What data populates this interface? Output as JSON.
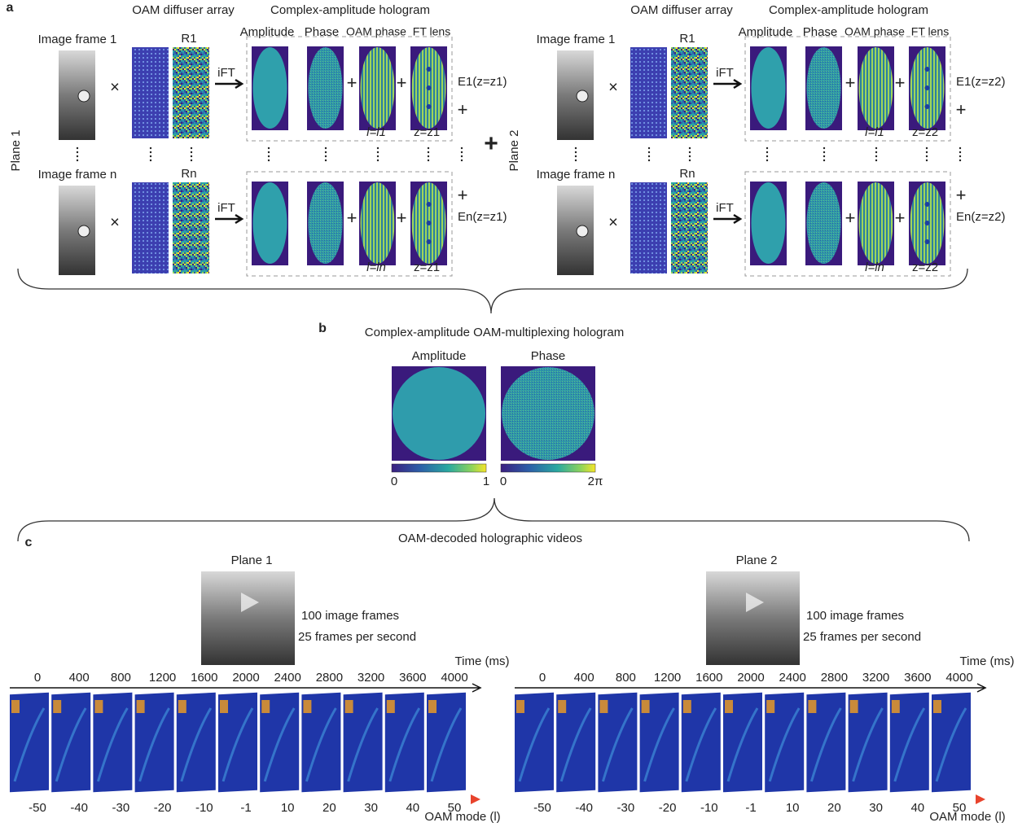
{
  "panel_a": {
    "label": "a",
    "plus": "+",
    "times": "×",
    "planes": [
      {
        "name": "Plane 1",
        "diffuser_title": "OAM diffuser array",
        "hologram_title": "Complex-amplitude hologram",
        "columns": [
          "Amplitude",
          "Phase",
          "OAM phase",
          "FT lens"
        ],
        "rows": [
          {
            "frame": "Image frame 1",
            "key": "R1",
            "transform": "iFT",
            "oam": "l=l1",
            "lens": "z=z1",
            "field": "E1(z=z1)"
          },
          {
            "frame": "Image frame n",
            "key": "Rn",
            "transform": "iFT",
            "oam": "l=ln",
            "lens": "z=z1",
            "field": "En(z=z1)"
          }
        ]
      },
      {
        "name": "Plane 2",
        "diffuser_title": "OAM diffuser array",
        "hologram_title": "Complex-amplitude hologram",
        "columns": [
          "Amplitude",
          "Phase",
          "OAM phase",
          "FT lens"
        ],
        "rows": [
          {
            "frame": "Image frame 1",
            "key": "R1",
            "transform": "iFT",
            "oam": "l=l1",
            "lens": "z=z2",
            "field": "E1(z=z2)"
          },
          {
            "frame": "Image frame n",
            "key": "Rn",
            "transform": "iFT",
            "oam": "l=ln",
            "lens": "z=z2",
            "field": "En(z=z2)"
          }
        ]
      }
    ]
  },
  "panel_b": {
    "label": "b",
    "title": "Complex-amplitude OAM-multiplexing hologram",
    "maps": [
      {
        "name": "Amplitude",
        "min": "0",
        "max": "1"
      },
      {
        "name": "Phase",
        "min": "0",
        "max": "2π"
      }
    ]
  },
  "panel_c": {
    "label": "c",
    "title": "OAM-decoded holographic videos",
    "planes": [
      {
        "name": "Plane 1",
        "frames": "100 image frames",
        "rate": "25 frames per second",
        "time_label": "Time (ms)",
        "times": [
          0,
          400,
          800,
          1200,
          1600,
          2000,
          2400,
          2800,
          3200,
          3600,
          4000
        ],
        "mode_label": "OAM mode (l)",
        "modes": [
          -50,
          -40,
          -30,
          -20,
          -10,
          -1,
          10,
          20,
          30,
          40,
          50
        ]
      },
      {
        "name": "Plane 2",
        "frames": "100 image frames",
        "rate": "25 frames per second",
        "time_label": "Time (ms)",
        "times": [
          0,
          400,
          800,
          1200,
          1600,
          2000,
          2400,
          2800,
          3200,
          3600,
          4000
        ],
        "mode_label": "OAM mode (l)",
        "modes": [
          -50,
          -40,
          -30,
          -20,
          -10,
          -1,
          10,
          20,
          30,
          40,
          50
        ]
      }
    ]
  }
}
